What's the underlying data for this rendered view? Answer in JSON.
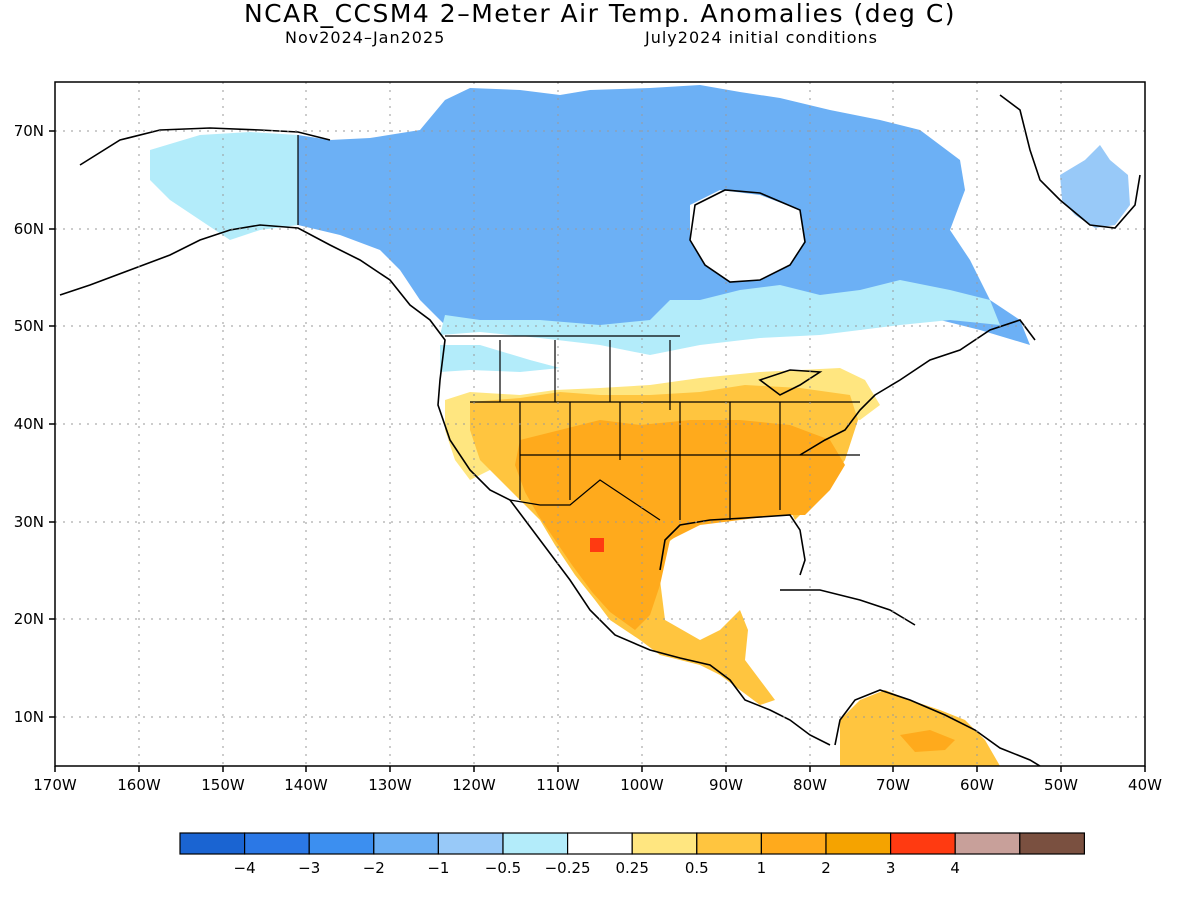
{
  "title": "NCAR_CCSM4 2–Meter Air Temp. Anomalies (deg C)",
  "subtitle_left": "Nov2024–Jan2025",
  "subtitle_right": "July2024 initial conditions",
  "lat_labels": [
    "70N",
    "60N",
    "50N",
    "40N",
    "30N",
    "20N",
    "10N"
  ],
  "lon_labels": [
    "170W",
    "160W",
    "150W",
    "140W",
    "130W",
    "120W",
    "110W",
    "100W",
    "90W",
    "80W",
    "70W",
    "60W",
    "50W",
    "40W"
  ],
  "colorbar": {
    "colors": [
      "#1a64d2",
      "#2b78e6",
      "#3c8ff0",
      "#6cb0f5",
      "#98c9f8",
      "#b3ecfa",
      "#ffffff",
      "#ffe680",
      "#ffc53f",
      "#ffaa1c",
      "#f5a300",
      "#ff3a11",
      "#c8a09a",
      "#7a5040"
    ],
    "labels": [
      "−4",
      "−3",
      "−2",
      "−1",
      "−0.5",
      "−0.25",
      "0.25",
      "0.5",
      "1",
      "2",
      "3",
      "4"
    ]
  },
  "chart_data": {
    "type": "heatmap",
    "title": "NCAR_CCSM4 2–Meter Air Temp. Anomalies (deg C)",
    "subtitle": "Nov2024–Jan2025 / July2024 initial conditions",
    "lon_range": [
      -170,
      -40
    ],
    "lat_range": [
      5,
      75
    ],
    "units": "deg C",
    "color_levels": [
      -4,
      -3,
      -2,
      -1,
      -0.5,
      -0.25,
      0.25,
      0.5,
      1,
      2,
      3,
      4
    ],
    "regions": [
      {
        "name": "Alaska",
        "anomaly": "-0.5 to -0.25"
      },
      {
        "name": "Western/Central Canada",
        "anomaly": "-2 to -1"
      },
      {
        "name": "Southern Canada / US northern tier",
        "anomaly": "-0.5 to 0.25"
      },
      {
        "name": "Contiguous US (central & south)",
        "anomaly": "1 to 2"
      },
      {
        "name": "Mexico",
        "anomaly": "1 to 2"
      },
      {
        "name": "Northern Mexico hotspot",
        "anomaly": "2 to 3"
      },
      {
        "name": "Greenland coast",
        "anomaly": "-1 to -0.5"
      },
      {
        "name": "Northern South America",
        "anomaly": "0.5 to 2"
      }
    ]
  }
}
